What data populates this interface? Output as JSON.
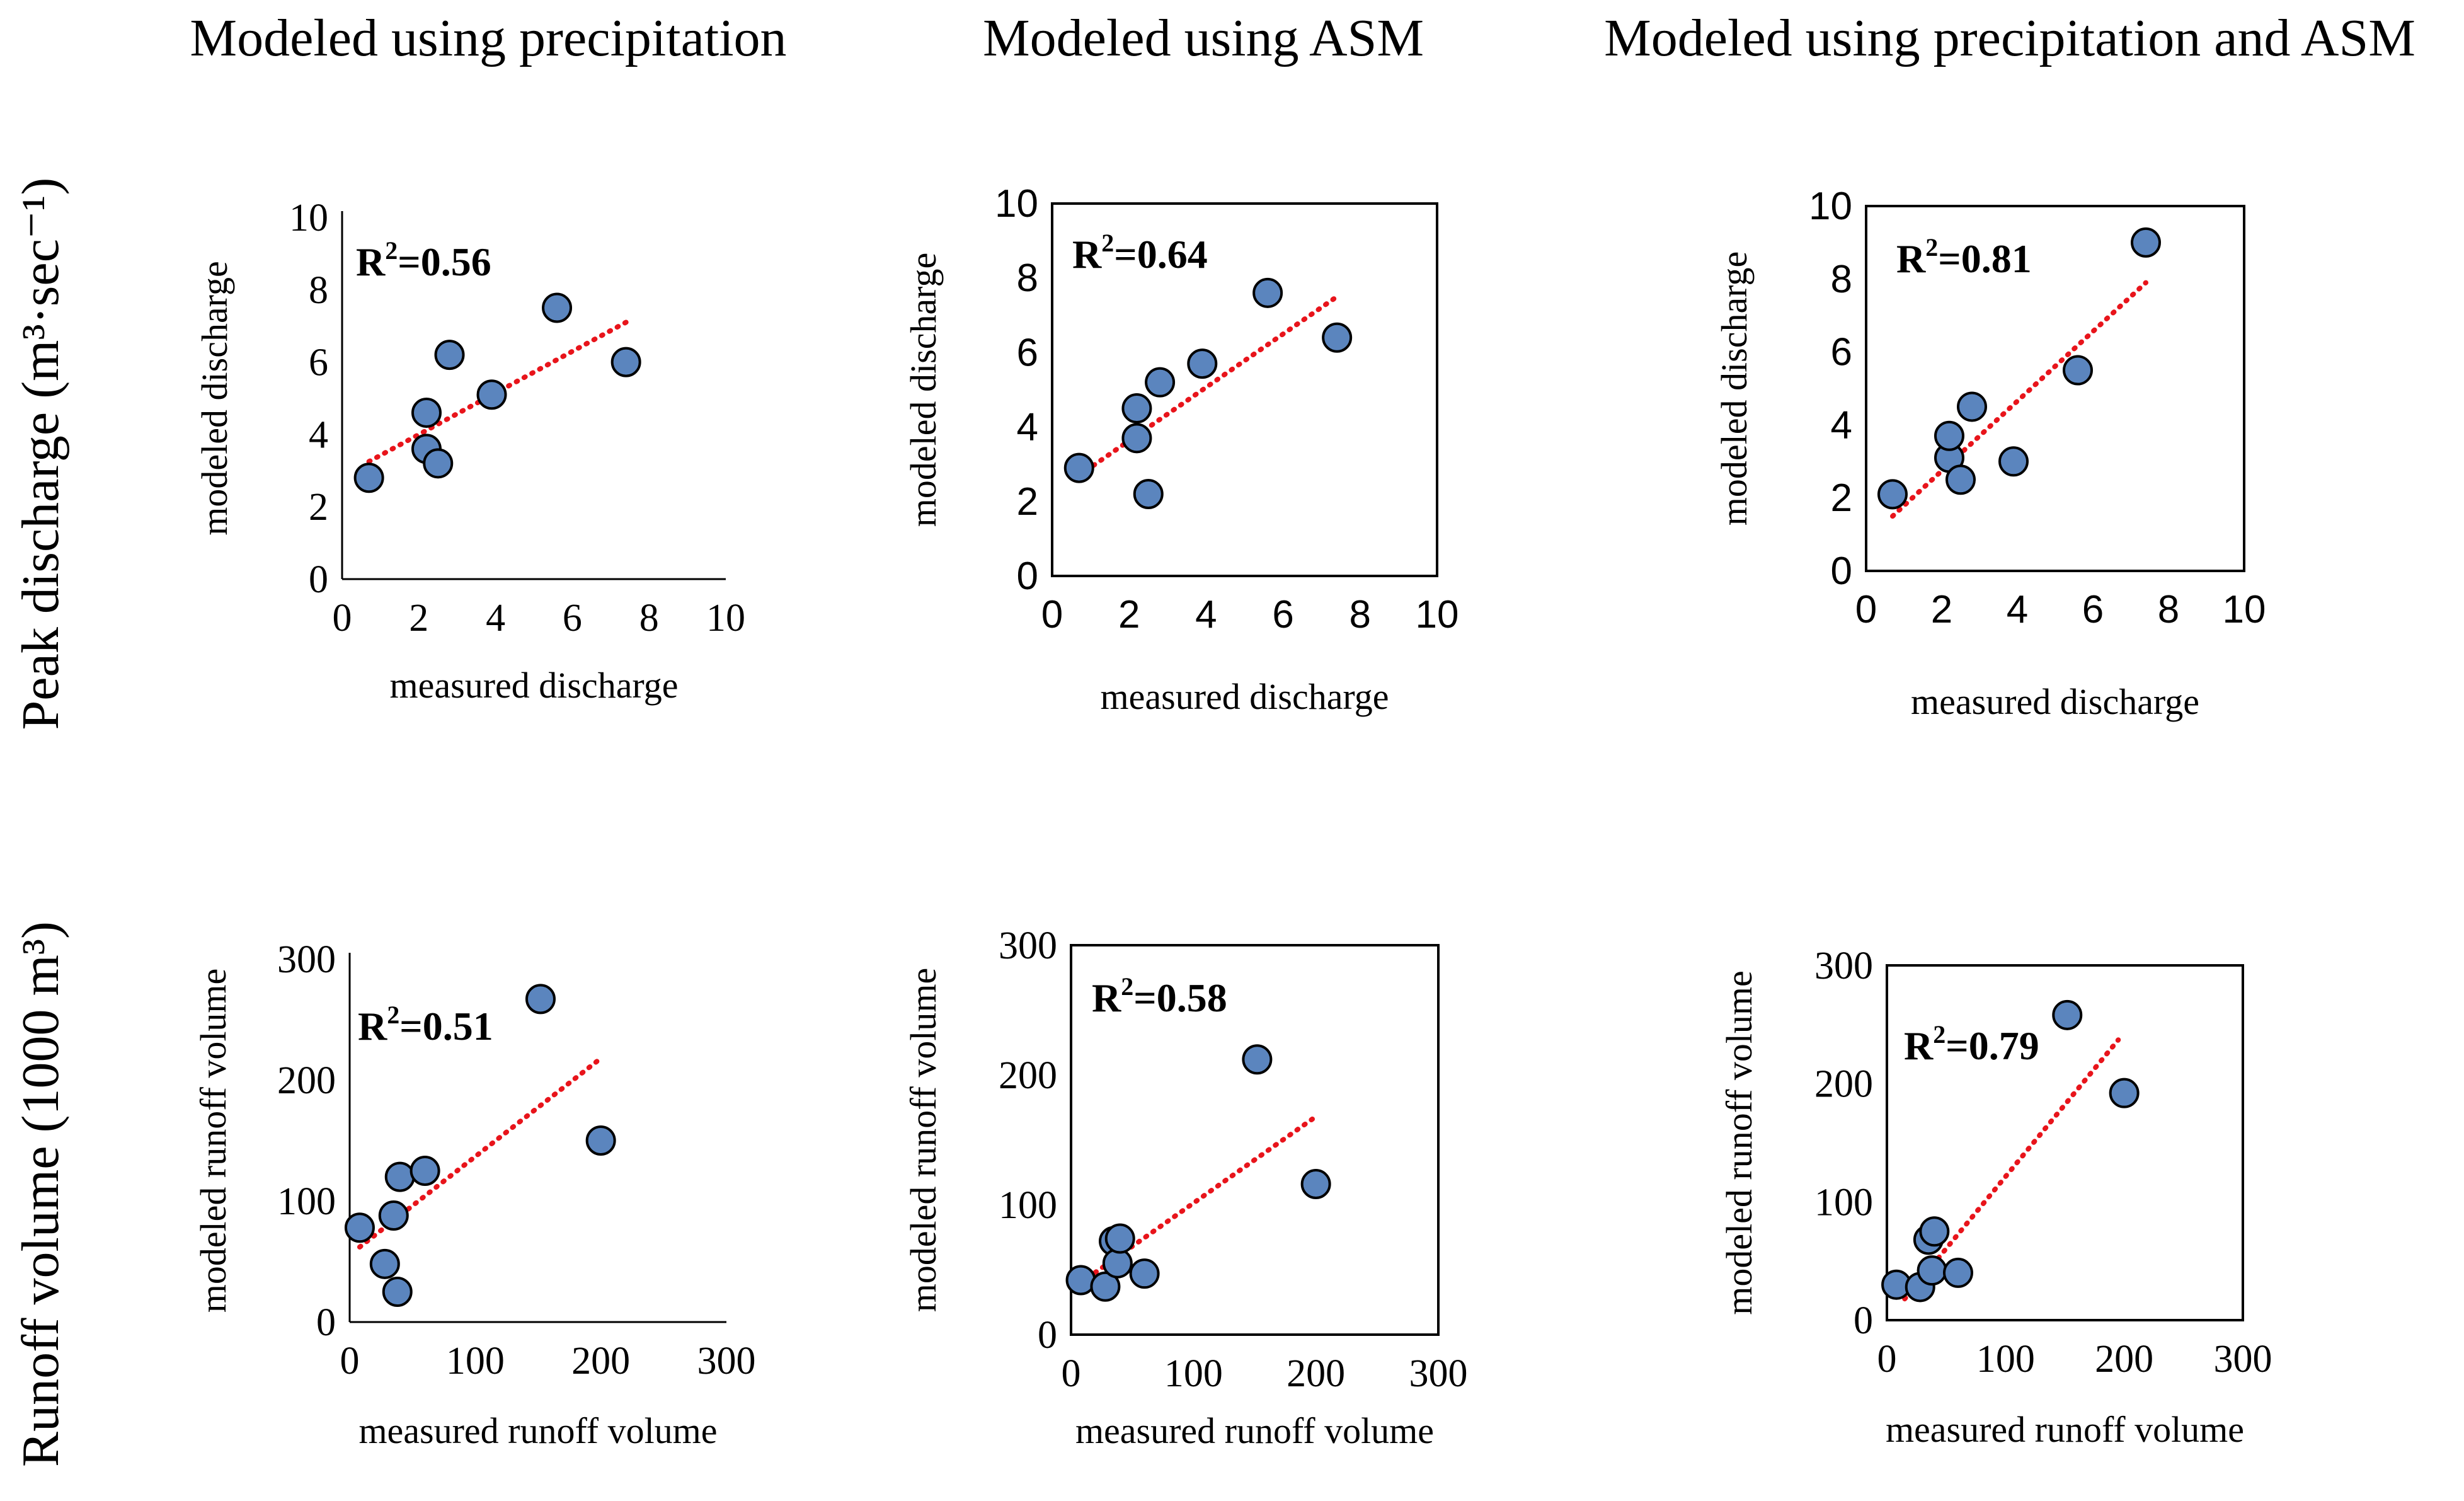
{
  "column_titles": [
    "Modeled using precipitation",
    "Modeled using ASM",
    "Modeled using precipitation and ASM"
  ],
  "row_titles": [
    "Peak discharge (m³·sec⁻¹)",
    "Runoff volume (1000 m³)"
  ],
  "colors": {
    "marker_fill": "#5B85BE",
    "marker_stroke": "#000000",
    "trendline": "#E8141B",
    "axis": "#000000"
  },
  "chart_data": [
    {
      "type": "scatter",
      "id": "p1",
      "title": "Modeled using precipitation",
      "xlabel": "measured discharge",
      "ylabel": "modeled discharge",
      "xlim": [
        0,
        10
      ],
      "ylim": [
        0,
        10
      ],
      "xticks": [
        "0",
        "2",
        "4",
        "6",
        "8",
        "10"
      ],
      "yticks": [
        "0",
        "2",
        "4",
        "6",
        "8",
        "10"
      ],
      "annotation": {
        "prefix": "R",
        "sup": "2",
        "suffix": "=0.56"
      },
      "x": [
        0.7,
        2.2,
        2.2,
        2.5,
        2.8,
        3.9,
        5.6,
        7.4
      ],
      "y": [
        2.8,
        3.6,
        4.6,
        3.2,
        6.2,
        5.1,
        7.5,
        6.0
      ],
      "trend": {
        "x0": 0.7,
        "y0": 3.25,
        "x1": 7.4,
        "y1": 7.1
      }
    },
    {
      "type": "scatter",
      "id": "p2",
      "title": "Modeled using ASM",
      "xlabel": "measured discharge",
      "ylabel": "modeled discharge",
      "xlim": [
        0,
        10
      ],
      "ylim": [
        0,
        10
      ],
      "xticks": [
        "0",
        "2",
        "4",
        "6",
        "8",
        "10"
      ],
      "yticks": [
        "0",
        "2",
        "4",
        "6",
        "8",
        "10"
      ],
      "annotation": {
        "prefix": "R",
        "sup": "2",
        "suffix": "=0.64"
      },
      "x": [
        0.7,
        2.2,
        2.2,
        2.5,
        2.8,
        3.9,
        5.6,
        7.4
      ],
      "y": [
        2.9,
        3.7,
        4.5,
        2.2,
        5.2,
        5.7,
        7.6,
        6.4
      ],
      "trend": {
        "x0": 0.7,
        "y0": 2.7,
        "x1": 7.4,
        "y1": 7.5
      }
    },
    {
      "type": "scatter",
      "id": "p3",
      "title": "Modeled using precipitation and ASM",
      "xlabel": "measured discharge",
      "ylabel": "modeled discharge",
      "xlim": [
        0,
        10
      ],
      "ylim": [
        0,
        10
      ],
      "xticks": [
        "0",
        "2",
        "4",
        "6",
        "8",
        "10"
      ],
      "yticks": [
        "0",
        "2",
        "4",
        "6",
        "8",
        "10"
      ],
      "annotation": {
        "prefix": "R",
        "sup": "2",
        "suffix": "=0.81"
      },
      "x": [
        0.7,
        2.2,
        2.2,
        2.5,
        2.8,
        3.9,
        5.6,
        7.4
      ],
      "y": [
        2.1,
        3.1,
        3.7,
        2.5,
        4.5,
        3.0,
        5.5,
        9.0
      ],
      "trend": {
        "x0": 0.7,
        "y0": 1.5,
        "x1": 7.4,
        "y1": 7.9
      }
    },
    {
      "type": "scatter",
      "id": "p4",
      "title": "Modeled using precipitation",
      "xlabel": "measured runoff volume",
      "ylabel": "modeled runoff volume",
      "xlim": [
        0,
        300
      ],
      "ylim": [
        0,
        300
      ],
      "xticks": [
        "0",
        "100",
        "200",
        "300"
      ],
      "yticks": [
        "0",
        "100",
        "200",
        "300"
      ],
      "annotation": {
        "prefix": "R",
        "sup": "2",
        "suffix": "=0.51"
      },
      "x": [
        8,
        28,
        35,
        38,
        40,
        60,
        152,
        200
      ],
      "y": [
        78,
        48,
        88,
        25,
        120,
        125,
        267,
        150
      ],
      "trend": {
        "x0": 8,
        "y0": 62,
        "x1": 200,
        "y1": 218
      }
    },
    {
      "type": "scatter",
      "id": "p5",
      "title": "Modeled using ASM",
      "xlabel": "measured runoff volume",
      "ylabel": "modeled runoff volume",
      "xlim": [
        0,
        300
      ],
      "ylim": [
        0,
        300
      ],
      "xticks": [
        "0",
        "100",
        "200",
        "300"
      ],
      "yticks": [
        "0",
        "100",
        "200",
        "300"
      ],
      "annotation": {
        "prefix": "R",
        "sup": "2",
        "suffix": "=0.58"
      },
      "x": [
        8,
        28,
        35,
        38,
        40,
        60,
        152,
        200
      ],
      "y": [
        42,
        37,
        72,
        55,
        74,
        47,
        212,
        116
      ],
      "trend": {
        "x0": 8,
        "y0": 40,
        "x1": 200,
        "y1": 168
      }
    },
    {
      "type": "scatter",
      "id": "p6",
      "title": "Modeled using precipitation and ASM",
      "xlabel": "measured runoff volume",
      "ylabel": "modeled runoff volume",
      "xlim": [
        0,
        300
      ],
      "ylim": [
        0,
        300
      ],
      "xticks": [
        "0",
        "100",
        "200",
        "300"
      ],
      "yticks": [
        "0",
        "100",
        "200",
        "300"
      ],
      "annotation": {
        "prefix": "R",
        "sup": "2",
        "suffix": "=0.79"
      },
      "x": [
        8,
        28,
        35,
        38,
        40,
        60,
        152,
        200
      ],
      "y": [
        30,
        28,
        68,
        42,
        75,
        40,
        258,
        192
      ],
      "trend": {
        "x0": 15,
        "y0": 18,
        "x1": 195,
        "y1": 237
      }
    }
  ]
}
